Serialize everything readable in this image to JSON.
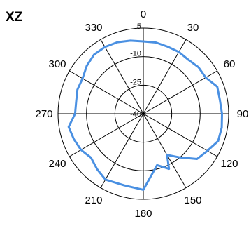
{
  "chart_data": {
    "type": "polar-line",
    "title": "XZ",
    "angle_unit": "degrees",
    "angle_direction": "clockwise from top",
    "angle_ticks": [
      0,
      30,
      60,
      90,
      120,
      150,
      180,
      210,
      240,
      270,
      300,
      330
    ],
    "angle_tick_labels": [
      "0",
      "30",
      "60",
      "90",
      "120",
      "150",
      "180",
      "210",
      "240",
      "270",
      "300",
      "330"
    ],
    "radial_range": [
      -40,
      5
    ],
    "radial_ticks": [
      -40,
      -25,
      -10,
      5
    ],
    "radial_tick_labels": [
      "-40",
      "-25",
      "-10",
      "5"
    ],
    "grid": true,
    "series": [
      {
        "color": "#4a90e2",
        "points": [
          {
            "angle": 0,
            "value": -2
          },
          {
            "angle": 10,
            "value": -2
          },
          {
            "angle": 20,
            "value": -2.5
          },
          {
            "angle": 30,
            "value": -2.5
          },
          {
            "angle": 40,
            "value": -3
          },
          {
            "angle": 50,
            "value": -2
          },
          {
            "angle": 60,
            "value": -2
          },
          {
            "angle": 70,
            "value": 1.5
          },
          {
            "angle": 80,
            "value": 1
          },
          {
            "angle": 90,
            "value": 1.5
          },
          {
            "angle": 100,
            "value": 2
          },
          {
            "angle": 110,
            "value": 2
          },
          {
            "angle": 120,
            "value": -1
          },
          {
            "angle": 130,
            "value": -3
          },
          {
            "angle": 140,
            "value": -10
          },
          {
            "angle": 150,
            "value": -15
          },
          {
            "angle": 155,
            "value": -8
          },
          {
            "angle": 165,
            "value": -12
          },
          {
            "angle": 180,
            "value": 0
          },
          {
            "angle": 195,
            "value": -1
          },
          {
            "angle": 210,
            "value": 0
          },
          {
            "angle": 220,
            "value": -2
          },
          {
            "angle": 230,
            "value": -4
          },
          {
            "angle": 240,
            "value": -2
          },
          {
            "angle": 250,
            "value": -1
          },
          {
            "angle": 260,
            "value": 0
          },
          {
            "angle": 270,
            "value": -4
          },
          {
            "angle": 280,
            "value": -4
          },
          {
            "angle": 290,
            "value": -3
          },
          {
            "angle": 300,
            "value": -3
          },
          {
            "angle": 310,
            "value": -1
          },
          {
            "angle": 320,
            "value": 0.5
          },
          {
            "angle": 330,
            "value": 0.5
          },
          {
            "angle": 340,
            "value": 0
          },
          {
            "angle": 350,
            "value": -1
          }
        ]
      }
    ]
  }
}
